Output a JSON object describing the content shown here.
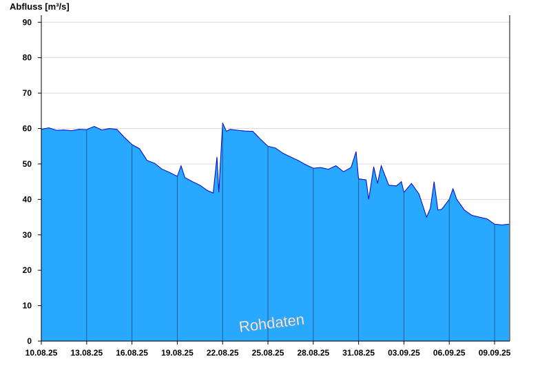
{
  "chart_data": {
    "type": "area",
    "ylabel": "Abfluss [m³/s]",
    "xlabel": "",
    "title": "",
    "ylim": [
      0,
      92
    ],
    "xlim": [
      "10.08.25",
      "09.09.25"
    ],
    "yticks": [
      0,
      10,
      20,
      30,
      40,
      50,
      60,
      70,
      80,
      90
    ],
    "xticks": [
      "10.08.25",
      "13.08.25",
      "16.08.25",
      "19.08.25",
      "22.08.25",
      "25.08.25",
      "28.08.25",
      "31.08.25",
      "03.09.25",
      "06.09.25",
      "09.09.25"
    ],
    "grid": "horizontal",
    "watermark": "Rohdaten",
    "colors": {
      "fill": "#29a8ff",
      "line": "#0000cc",
      "grid": "#dcdcdc",
      "divider": "#1f5a8a"
    },
    "series": [
      {
        "points": [
          [
            "10.08.25 00:00",
            59.8
          ],
          [
            "10.08.25 12:00",
            60.2
          ],
          [
            "11.08.25 00:00",
            59.5
          ],
          [
            "11.08.25 12:00",
            59.6
          ],
          [
            "12.08.25 00:00",
            59.4
          ],
          [
            "12.08.25 12:00",
            59.8
          ],
          [
            "13.08.25 00:00",
            59.7
          ],
          [
            "13.08.25 12:00",
            60.6
          ],
          [
            "14.08.25 00:00",
            59.6
          ],
          [
            "14.08.25 12:00",
            60.0
          ],
          [
            "15.08.25 00:00",
            59.8
          ],
          [
            "15.08.25 12:00",
            57.5
          ],
          [
            "16.08.25 00:00",
            55.5
          ],
          [
            "16.08.25 12:00",
            54.3
          ],
          [
            "17.08.25 00:00",
            51.0
          ],
          [
            "17.08.25 12:00",
            50.2
          ],
          [
            "18.08.25 00:00",
            48.5
          ],
          [
            "18.08.25 12:00",
            47.6
          ],
          [
            "19.08.25 00:00",
            46.5
          ],
          [
            "19.08.25 06:00",
            49.5
          ],
          [
            "19.08.25 12:00",
            46.2
          ],
          [
            "20.08.25 00:00",
            45.0
          ],
          [
            "20.08.25 12:00",
            44.0
          ],
          [
            "21.08.25 00:00",
            42.5
          ],
          [
            "21.08.25 09:00",
            41.8
          ],
          [
            "21.08.25 15:00",
            52.0
          ],
          [
            "21.08.25 18:00",
            42.0
          ],
          [
            "22.08.25 00:00",
            61.6
          ],
          [
            "22.08.25 06:00",
            59.2
          ],
          [
            "22.08.25 12:00",
            59.8
          ],
          [
            "23.08.25 00:00",
            59.5
          ],
          [
            "23.08.25 12:00",
            59.3
          ],
          [
            "24.08.25 00:00",
            59.2
          ],
          [
            "24.08.25 12:00",
            57.0
          ],
          [
            "25.08.25 00:00",
            55.0
          ],
          [
            "25.08.25 12:00",
            54.5
          ],
          [
            "26.08.25 00:00",
            53.0
          ],
          [
            "26.08.25 12:00",
            52.0
          ],
          [
            "27.08.25 00:00",
            51.0
          ],
          [
            "27.08.25 12:00",
            49.8
          ],
          [
            "28.08.25 00:00",
            48.8
          ],
          [
            "28.08.25 12:00",
            49.0
          ],
          [
            "29.08.25 00:00",
            48.5
          ],
          [
            "29.08.25 12:00",
            49.5
          ],
          [
            "30.08.25 00:00",
            47.8
          ],
          [
            "30.08.25 12:00",
            49.0
          ],
          [
            "30.08.25 20:00",
            53.5
          ],
          [
            "31.08.25 00:00",
            45.8
          ],
          [
            "31.08.25 12:00",
            45.5
          ],
          [
            "31.08.25 16:00",
            40.0
          ],
          [
            "01.09.25 00:00",
            49.2
          ],
          [
            "01.09.25 06:00",
            44.5
          ],
          [
            "01.09.25 12:00",
            49.5
          ],
          [
            "02.09.25 00:00",
            44.0
          ],
          [
            "02.09.25 12:00",
            43.8
          ],
          [
            "02.09.25 20:00",
            45.0
          ],
          [
            "03.09.25 00:00",
            42.0
          ],
          [
            "03.09.25 12:00",
            44.5
          ],
          [
            "04.09.25 00:00",
            41.5
          ],
          [
            "04.09.25 12:00",
            35.0
          ],
          [
            "04.09.25 18:00",
            37.5
          ],
          [
            "05.09.25 00:00",
            45.0
          ],
          [
            "05.09.25 06:00",
            37.0
          ],
          [
            "05.09.25 12:00",
            37.2
          ],
          [
            "06.09.25 00:00",
            40.0
          ],
          [
            "06.09.25 06:00",
            43.0
          ],
          [
            "06.09.25 12:00",
            40.0
          ],
          [
            "07.09.25 00:00",
            37.0
          ],
          [
            "07.09.25 12:00",
            35.5
          ],
          [
            "08.09.25 00:00",
            35.0
          ],
          [
            "08.09.25 12:00",
            34.5
          ],
          [
            "09.09.25 00:00",
            33.0
          ],
          [
            "09.09.25 12:00",
            32.8
          ],
          [
            "09.09.25 23:00",
            33.0
          ]
        ]
      }
    ]
  }
}
